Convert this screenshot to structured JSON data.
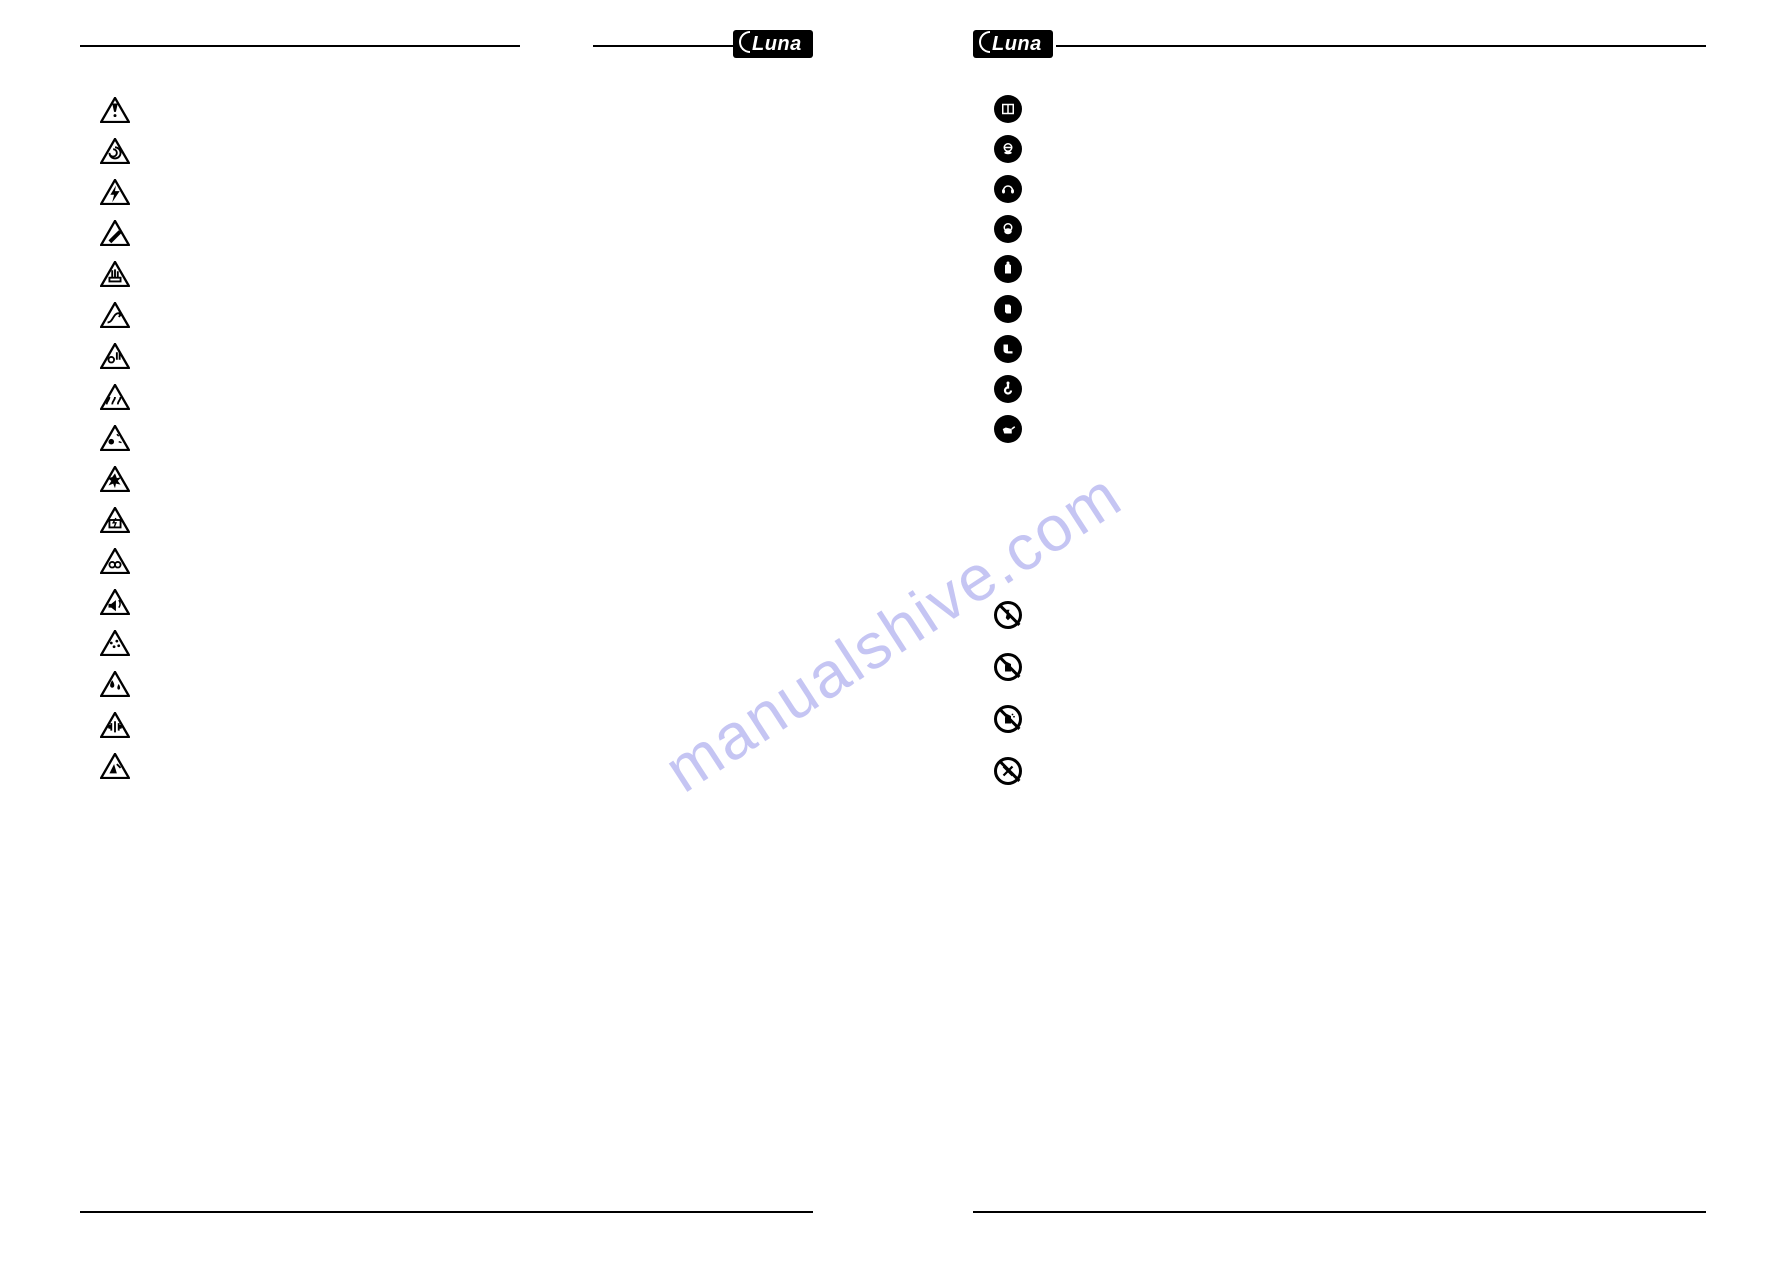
{
  "brand": "Luna",
  "watermark_text": "manualshive.com",
  "left_page": {
    "section": "warning_signs",
    "icons": [
      {
        "name": "general-warning",
        "glyph": "!"
      },
      {
        "name": "rotating-parts-warning",
        "glyph": "spiral"
      },
      {
        "name": "electricity-warning",
        "glyph": "bolt"
      },
      {
        "name": "cutting-warning",
        "glyph": "blade"
      },
      {
        "name": "hand-crush-warning",
        "glyph": "hand-crush"
      },
      {
        "name": "hose-whip-warning",
        "glyph": "hose"
      },
      {
        "name": "hand-entanglement-warning",
        "glyph": "hand-gear"
      },
      {
        "name": "hot-surface-warning",
        "glyph": "heat"
      },
      {
        "name": "flying-debris-warning",
        "glyph": "debris"
      },
      {
        "name": "explosion-warning",
        "glyph": "burst"
      },
      {
        "name": "battery-hazard-warning",
        "glyph": "battery-bolt"
      },
      {
        "name": "pinch-point-warning",
        "glyph": "rollers"
      },
      {
        "name": "noise-warning",
        "glyph": "sound"
      },
      {
        "name": "dust-warning",
        "glyph": "dust"
      },
      {
        "name": "corrosive-warning",
        "glyph": "drops"
      },
      {
        "name": "vibration-warning",
        "glyph": "vibration"
      },
      {
        "name": "tipping-warning",
        "glyph": "tip"
      }
    ]
  },
  "right_page": {
    "mandatory_section": {
      "icons": [
        {
          "name": "read-manual",
          "glyph": "book"
        },
        {
          "name": "eye-protection",
          "glyph": "goggles"
        },
        {
          "name": "ear-protection",
          "glyph": "earmuffs"
        },
        {
          "name": "mask-protection",
          "glyph": "mask"
        },
        {
          "name": "protective-suit",
          "glyph": "suit"
        },
        {
          "name": "gloves",
          "glyph": "glove"
        },
        {
          "name": "safety-boots",
          "glyph": "boot"
        },
        {
          "name": "lifting-hook",
          "glyph": "hook"
        },
        {
          "name": "oil-lubricate",
          "glyph": "oilcan"
        }
      ]
    },
    "prohibition_section": {
      "icons": [
        {
          "name": "no-loose-clothing",
          "glyph": "tie"
        },
        {
          "name": "no-touch",
          "glyph": "hand"
        },
        {
          "name": "no-wet-hands",
          "glyph": "wet-hand"
        },
        {
          "name": "no-modification",
          "glyph": "tools-x"
        }
      ]
    }
  },
  "colors": {
    "ink": "#000000",
    "paper": "#ffffff",
    "watermark": "rgba(90,90,220,0.35)"
  }
}
